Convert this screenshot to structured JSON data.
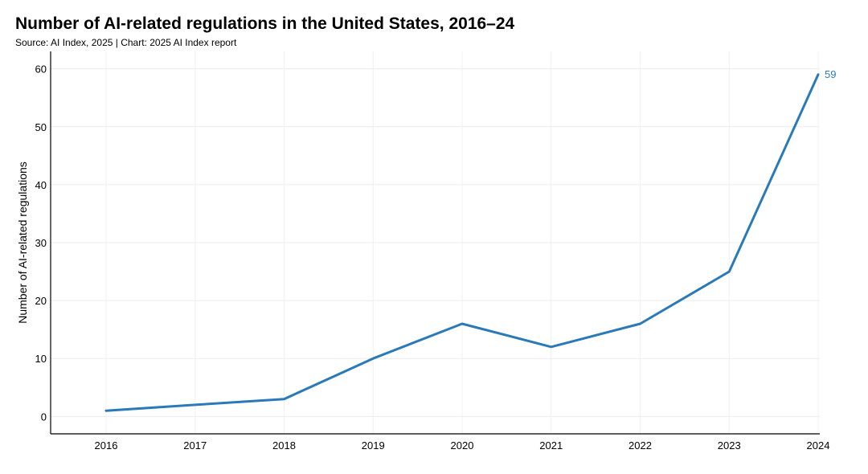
{
  "chart_data": {
    "type": "line",
    "title": "Number of AI-related regulations in the United States, 2016–24",
    "subtitle": "Source: AI Index, 2025 | Chart: 2025 AI Index report",
    "xlabel": "",
    "ylabel": "Number of AI-related regulations",
    "x": [
      "2016",
      "2017",
      "2018",
      "2019",
      "2020",
      "2021",
      "2022",
      "2023",
      "2024"
    ],
    "y_ticks": [
      "0",
      "10",
      "20",
      "30",
      "40",
      "50",
      "60"
    ],
    "ylim": [
      -3,
      63
    ],
    "grid": true,
    "series": [
      {
        "color": "#2a7ab9",
        "values": [
          1,
          2,
          3,
          10,
          16,
          12,
          16,
          25,
          59
        ]
      }
    ],
    "end_label": "59"
  }
}
